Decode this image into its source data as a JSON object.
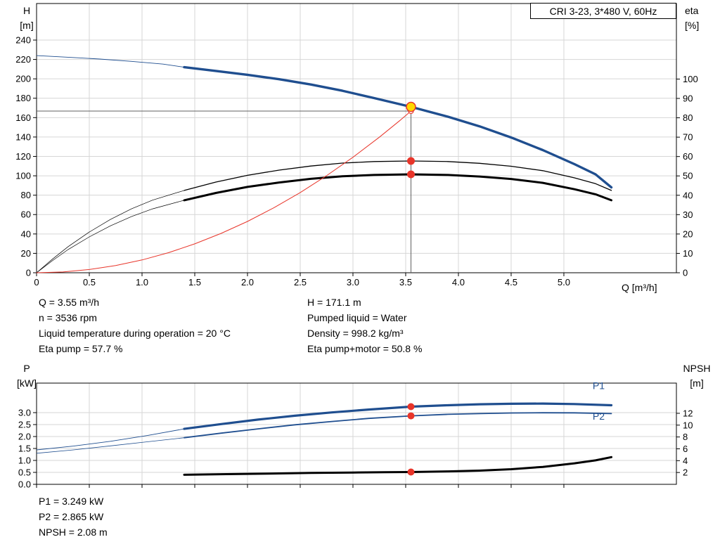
{
  "header": {
    "title": "CRI 3-23, 3*480 V, 60Hz"
  },
  "colors": {
    "blue": "#1f4e8f",
    "red": "#e8352a",
    "yellow": "#ffd800",
    "black": "#000000",
    "grid": "#d6d6d6",
    "frame": "#000000",
    "ref": "#606060",
    "white": "#ffffff"
  },
  "top_info": {
    "left": [
      "Q = 3.55 m³/h",
      "n = 3536 rpm",
      "Liquid temperature during operation = 20 °C",
      "Eta pump = 57.7 %"
    ],
    "right": [
      "H = 171.1 m",
      "Pumped liquid = Water",
      "Density = 998.2 kg/m³",
      "Eta pump+motor = 50.8 %"
    ]
  },
  "bottom_info": [
    "P1 = 3.249 kW",
    "P2 = 2.865 kW",
    "NPSH = 2.08 m"
  ],
  "chart_data": [
    {
      "type": "line",
      "title": "CRI 3-23, 3*480 V, 60Hz",
      "x_axis": {
        "label": "Q [m³/h]",
        "min": 0,
        "max": 6.067,
        "tick_values": [
          0,
          0.5,
          1,
          1.5,
          2,
          2.5,
          3,
          3.5,
          4,
          4.5,
          5
        ],
        "tick_labels": [
          "0",
          "0.5",
          "1.0",
          "1.5",
          "2.0",
          "2.5",
          "3.0",
          "3.5",
          "4.0",
          "4.5",
          "5.0"
        ]
      },
      "y_left": {
        "label_lines": [
          "H",
          "[m]"
        ],
        "min": 0,
        "max": 277.7,
        "tick_values": [
          0,
          20,
          40,
          60,
          80,
          100,
          120,
          140,
          160,
          180,
          200,
          220,
          240
        ],
        "tick_labels": [
          "0",
          "20",
          "40",
          "60",
          "80",
          "100",
          "120",
          "140",
          "160",
          "180",
          "200",
          "220",
          "240"
        ]
      },
      "y_right": {
        "label_lines": [
          "eta",
          "[%]"
        ],
        "min": 0,
        "max": 139,
        "tick_values": [
          0,
          10,
          20,
          30,
          40,
          50,
          60,
          70,
          80,
          90,
          100
        ],
        "tick_labels": [
          "0",
          "10",
          "20",
          "30",
          "40",
          "50",
          "60",
          "70",
          "80",
          "90",
          "100"
        ]
      },
      "series": [
        {
          "name": "head-curve",
          "axis": "left",
          "color": "#1f4e8f",
          "width": 3.4,
          "thin_until": 1.4,
          "thin_width": 0.9,
          "points": [
            [
              0,
              224
            ],
            [
              0.3,
              222.3
            ],
            [
              0.6,
              220.4
            ],
            [
              0.9,
              218
            ],
            [
              1.2,
              215.2
            ],
            [
              1.4,
              212
            ],
            [
              1.7,
              208.2
            ],
            [
              2,
              204.2
            ],
            [
              2.3,
              199.6
            ],
            [
              2.6,
              194.2
            ],
            [
              2.9,
              187.7
            ],
            [
              3.2,
              180.2
            ],
            [
              3.55,
              171.1
            ],
            [
              3.9,
              161
            ],
            [
              4.2,
              151
            ],
            [
              4.5,
              139.5
            ],
            [
              4.8,
              126.5
            ],
            [
              5.1,
              112
            ],
            [
              5.3,
              101.5
            ],
            [
              5.45,
              88
            ]
          ]
        },
        {
          "name": "eta-pump-curve",
          "axis": "right",
          "color": "#000000",
          "width": 1.3,
          "thin_until": 1.4,
          "thin_width": 0.7,
          "points": [
            [
              0,
              0
            ],
            [
              0.15,
              7
            ],
            [
              0.3,
              13.5
            ],
            [
              0.5,
              21
            ],
            [
              0.7,
              27.5
            ],
            [
              0.9,
              33
            ],
            [
              1.1,
              37.5
            ],
            [
              1.4,
              42.5
            ],
            [
              1.7,
              46.8
            ],
            [
              2,
              50.3
            ],
            [
              2.3,
              53
            ],
            [
              2.6,
              55.1
            ],
            [
              2.9,
              56.6
            ],
            [
              3.2,
              57.4
            ],
            [
              3.55,
              57.7
            ],
            [
              3.9,
              57.4
            ],
            [
              4.2,
              56.5
            ],
            [
              4.5,
              55
            ],
            [
              4.8,
              52.7
            ],
            [
              5.1,
              49
            ],
            [
              5.3,
              46
            ],
            [
              5.45,
              42.5
            ]
          ]
        },
        {
          "name": "eta-pump-motor-curve",
          "axis": "right",
          "color": "#000000",
          "width": 3,
          "thin_until": 1.4,
          "thin_width": 0.7,
          "points": [
            [
              0,
              0
            ],
            [
              0.15,
              6.2
            ],
            [
              0.3,
              12
            ],
            [
              0.5,
              18.5
            ],
            [
              0.7,
              24.2
            ],
            [
              0.9,
              29
            ],
            [
              1.1,
              33
            ],
            [
              1.4,
              37.4
            ],
            [
              1.7,
              41.2
            ],
            [
              2,
              44.3
            ],
            [
              2.3,
              46.6
            ],
            [
              2.6,
              48.5
            ],
            [
              2.9,
              49.8
            ],
            [
              3.2,
              50.5
            ],
            [
              3.55,
              50.8
            ],
            [
              3.9,
              50.5
            ],
            [
              4.2,
              49.7
            ],
            [
              4.5,
              48.4
            ],
            [
              4.8,
              46.4
            ],
            [
              5.1,
              43.1
            ],
            [
              5.3,
              40.5
            ],
            [
              5.45,
              37.4
            ]
          ]
        },
        {
          "name": "system-curve",
          "axis": "left",
          "color": "#e8352a",
          "width": 1,
          "points": [
            [
              0,
              0
            ],
            [
              0.25,
              0.8
            ],
            [
              0.5,
              3.3
            ],
            [
              0.75,
              7.4
            ],
            [
              1,
              13.2
            ],
            [
              1.25,
              20.7
            ],
            [
              1.5,
              29.8
            ],
            [
              1.75,
              40.6
            ],
            [
              2,
              52.9
            ],
            [
              2.25,
              67
            ],
            [
              2.5,
              82.7
            ],
            [
              2.75,
              100.1
            ],
            [
              3,
              119.1
            ],
            [
              3.25,
              139.8
            ],
            [
              3.45,
              157.5
            ],
            [
              3.55,
              166.8
            ]
          ]
        }
      ],
      "ref_lines": {
        "q": 3.55,
        "vertical_to": 171.1,
        "horizontal_at": 166.8
      },
      "markers": [
        {
          "name": "system-intersection-point",
          "q": 3.55,
          "value": 166.8,
          "axis": "left",
          "r": 3.5,
          "fill": "#ffffff",
          "stroke": "#e8352a",
          "stroke_width": 1.2
        },
        {
          "name": "duty-point",
          "q": 3.55,
          "value": 171.1,
          "axis": "left",
          "r": 6.5,
          "fill": "#ffd800",
          "stroke": "#e8352a",
          "stroke_width": 1.5
        },
        {
          "name": "eta-pump-point",
          "q": 3.55,
          "value": 57.7,
          "axis": "right",
          "r": 5.5,
          "fill": "#e8352a"
        },
        {
          "name": "eta-pump-motor-point",
          "q": 3.55,
          "value": 50.8,
          "axis": "right",
          "r": 5.5,
          "fill": "#e8352a"
        }
      ]
    },
    {
      "type": "line",
      "x_axis": {
        "label": "",
        "min": 0,
        "max": 6.067,
        "tick_values": [
          0,
          0.5,
          1,
          1.5,
          2,
          2.5,
          3,
          3.5,
          4,
          4.5,
          5
        ],
        "tick_labels": []
      },
      "y_left": {
        "label_lines": [
          "P",
          "[kW]"
        ],
        "min": 0,
        "max": 4.235,
        "tick_values": [
          0,
          0.5,
          1,
          1.5,
          2,
          2.5,
          3
        ],
        "tick_labels": [
          "0.0",
          "0.5",
          "1.0",
          "1.5",
          "2.0",
          "2.5",
          "3.0"
        ]
      },
      "y_right": {
        "label_lines": [
          "NPSH",
          "[m]"
        ],
        "min": 0,
        "max": 17.1,
        "tick_values": [
          2,
          4,
          6,
          8,
          10,
          12
        ],
        "tick_labels": [
          "2",
          "4",
          "6",
          "8",
          "10",
          "12"
        ]
      },
      "series": [
        {
          "name": "p1-curve",
          "axis": "left",
          "color": "#1f4e8f",
          "width": 3.2,
          "thin_until": 1.4,
          "thin_width": 0.9,
          "points": [
            [
              0,
              1.44
            ],
            [
              0.35,
              1.6
            ],
            [
              0.7,
              1.8
            ],
            [
              1.05,
              2.04
            ],
            [
              1.4,
              2.32
            ],
            [
              1.75,
              2.52
            ],
            [
              2.1,
              2.71
            ],
            [
              2.45,
              2.87
            ],
            [
              2.8,
              3.01
            ],
            [
              3.15,
              3.13
            ],
            [
              3.55,
              3.249
            ],
            [
              3.9,
              3.31
            ],
            [
              4.2,
              3.35
            ],
            [
              4.5,
              3.37
            ],
            [
              4.8,
              3.38
            ],
            [
              5.1,
              3.36
            ],
            [
              5.45,
              3.31
            ]
          ],
          "label": {
            "text": "P1",
            "q": 5.33,
            "value": 3.98
          }
        },
        {
          "name": "p2-curve",
          "axis": "left",
          "color": "#1f4e8f",
          "width": 1.8,
          "thin_until": 1.4,
          "thin_width": 0.8,
          "points": [
            [
              0,
              1.3
            ],
            [
              0.35,
              1.44
            ],
            [
              0.7,
              1.61
            ],
            [
              1.05,
              1.78
            ],
            [
              1.4,
              1.95
            ],
            [
              1.75,
              2.14
            ],
            [
              2.1,
              2.32
            ],
            [
              2.45,
              2.49
            ],
            [
              2.8,
              2.63
            ],
            [
              3.15,
              2.76
            ],
            [
              3.55,
              2.865
            ],
            [
              3.9,
              2.93
            ],
            [
              4.2,
              2.96
            ],
            [
              4.5,
              2.985
            ],
            [
              4.8,
              2.995
            ],
            [
              5.1,
              2.99
            ],
            [
              5.45,
              2.96
            ]
          ],
          "label": {
            "text": "P2",
            "q": 5.33,
            "value": 2.7
          }
        },
        {
          "name": "npsh-curve",
          "axis": "right",
          "color": "#000000",
          "width": 3,
          "points": [
            [
              1.4,
              1.62
            ],
            [
              1.8,
              1.72
            ],
            [
              2.2,
              1.82
            ],
            [
              2.6,
              1.92
            ],
            [
              3,
              2
            ],
            [
              3.3,
              2.04
            ],
            [
              3.55,
              2.08
            ],
            [
              3.9,
              2.18
            ],
            [
              4.2,
              2.32
            ],
            [
              4.5,
              2.55
            ],
            [
              4.8,
              2.95
            ],
            [
              5.1,
              3.55
            ],
            [
              5.3,
              4.05
            ],
            [
              5.45,
              4.6
            ]
          ]
        }
      ],
      "markers": [
        {
          "name": "p1-point",
          "q": 3.55,
          "value": 3.249,
          "axis": "left",
          "r": 5,
          "fill": "#e8352a"
        },
        {
          "name": "p2-point",
          "q": 3.55,
          "value": 2.865,
          "axis": "left",
          "r": 5,
          "fill": "#e8352a"
        },
        {
          "name": "npsh-point",
          "q": 3.55,
          "value": 2.08,
          "axis": "right",
          "r": 5,
          "fill": "#e8352a"
        }
      ]
    }
  ]
}
